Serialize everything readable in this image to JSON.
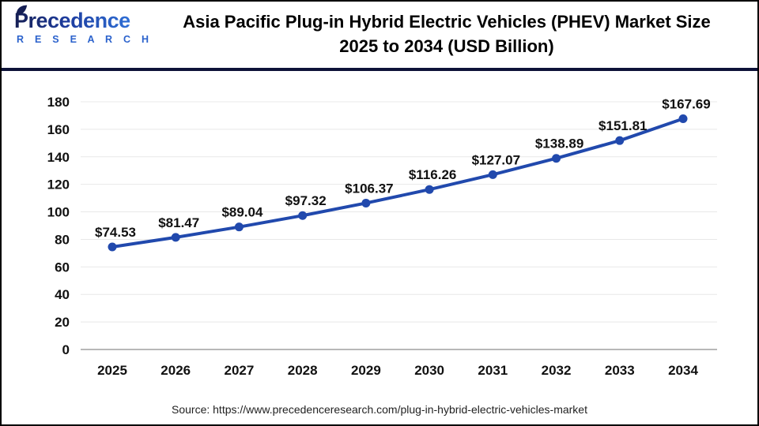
{
  "logo": {
    "brand": "Precedence",
    "sub": "R E S E A R C H"
  },
  "header": {
    "title_line1": "Asia Pacific Plug-in Hybrid Electric Vehicles (PHEV) Market Size",
    "title_line2": "2025 to 2034 (USD Billion)"
  },
  "source": {
    "label": "Source: https://www.precedenceresearch.com/plug-in-hybrid-electric-vehicles-market"
  },
  "colors": {
    "line": "#2149ad",
    "marker": "#2149ad",
    "divider": "#0d1238",
    "gridline": "#e8e8e8",
    "axis_line": "#b8b8b8",
    "tick_text": "#111111",
    "label_text": "#111111"
  },
  "chart_data": {
    "type": "line",
    "title": "Asia Pacific Plug-in Hybrid Electric Vehicles (PHEV) Market Size 2025 to 2034 (USD Billion)",
    "xlabel": "",
    "ylabel": "",
    "categories": [
      "2025",
      "2026",
      "2027",
      "2028",
      "2029",
      "2030",
      "2031",
      "2032",
      "2033",
      "2034"
    ],
    "values": [
      74.53,
      81.47,
      89.04,
      97.32,
      106.37,
      116.26,
      127.07,
      138.89,
      151.81,
      167.69
    ],
    "data_labels": [
      "$74.53",
      "$81.47",
      "$89.04",
      "$97.32",
      "$106.37",
      "$116.26",
      "$127.07",
      "$138.89",
      "$151.81",
      "$167.69"
    ],
    "ylim": [
      0,
      180
    ],
    "yticks": [
      0,
      20,
      40,
      60,
      80,
      100,
      120,
      140,
      160,
      180
    ],
    "grid": true,
    "legend": false,
    "marker": "circle"
  }
}
